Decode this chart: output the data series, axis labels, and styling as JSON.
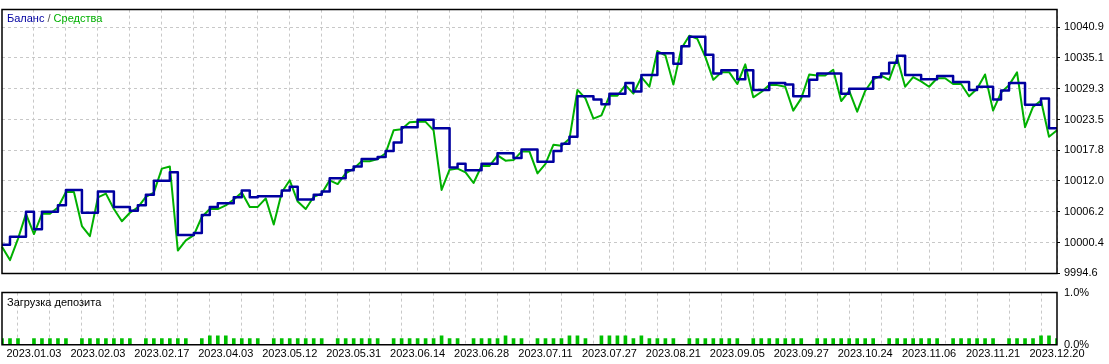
{
  "chart_data": [
    {
      "type": "line",
      "categories": [
        null,
        null,
        null,
        null,
        "2023.01.03",
        null,
        null,
        null,
        null,
        null,
        null,
        null,
        "2023.02.03",
        null,
        null,
        null,
        null,
        null,
        null,
        null,
        "2023.02.17",
        null,
        null,
        null,
        null,
        null,
        null,
        null,
        "2023.04.03",
        null,
        null,
        null,
        null,
        null,
        null,
        null,
        "2023.05.12",
        null,
        null,
        null,
        null,
        null,
        null,
        null,
        "2023.05.31",
        null,
        null,
        null,
        null,
        null,
        null,
        null,
        "2023.06.14",
        null,
        null,
        null,
        null,
        null,
        null,
        null,
        "2023.06.28",
        null,
        null,
        null,
        null,
        null,
        null,
        null,
        "2023.07.11",
        null,
        null,
        null,
        null,
        null,
        null,
        null,
        "2023.07.27",
        null,
        null,
        null,
        null,
        null,
        null,
        null,
        "2023.08.21",
        null,
        null,
        null,
        null,
        null,
        null,
        null,
        "2023.09.05",
        null,
        null,
        null,
        null,
        null,
        null,
        null,
        "2023.09.27",
        null,
        null,
        null,
        null,
        null,
        null,
        null,
        "2023.10.24",
        null,
        null,
        null,
        null,
        null,
        null,
        null,
        "2023.11.06",
        null,
        null,
        null,
        null,
        null,
        null,
        null,
        "2023.11.21",
        null,
        null,
        null,
        null,
        null,
        null,
        null,
        "2023.12.20"
      ],
      "series": [
        {
          "name": "Баланс",
          "type": "step",
          "color": "#0000a0",
          "values": [
            10000.0,
            10001.5,
            10001.5,
            10006.2,
            10002.9,
            10006.2,
            10006.2,
            10007.4,
            10010.3,
            10010.3,
            10006.0,
            10006.0,
            10010.0,
            10010.0,
            10007.1,
            10007.1,
            10006.4,
            10007.4,
            10009.4,
            10012.0,
            10012.0,
            10013.6,
            10001.8,
            10001.8,
            10002.2,
            10005.6,
            10007.1,
            10007.8,
            10007.8,
            10008.9,
            10010.2,
            10008.9,
            10009.1,
            10009.1,
            10009.1,
            10010.2,
            10010.9,
            10008.5,
            10008.5,
            10009.4,
            10010.0,
            10012.5,
            10012.5,
            10014.0,
            10014.7,
            10016.1,
            10016.1,
            10016.5,
            10017.6,
            10019.2,
            10022.1,
            10022.1,
            10023.5,
            10023.5,
            10021.9,
            10021.9,
            10014.5,
            10015.2,
            10014.0,
            10014.0,
            10015.2,
            10015.2,
            10017.2,
            10017.2,
            10016.3,
            10017.9,
            10017.9,
            10015.6,
            10015.6,
            10017.6,
            10019.0,
            10020.3,
            10027.9,
            10027.9,
            10027.3,
            10026.4,
            10028.4,
            10028.4,
            10030.4,
            10028.8,
            10031.9,
            10031.9,
            10036.0,
            10036.0,
            10034.0,
            10037.3,
            10039.1,
            10039.1,
            10035.7,
            10032.2,
            10032.8,
            10032.8,
            10031.1,
            10032.8,
            10029.1,
            10029.1,
            10030.4,
            10030.4,
            10030.1,
            10027.9,
            10027.9,
            10031.0,
            10032.2,
            10032.2,
            10032.2,
            10028.4,
            10029.3,
            10029.3,
            10029.3,
            10031.5,
            10032.2,
            10034.2,
            10035.5,
            10031.9,
            10031.9,
            10031.1,
            10031.1,
            10031.7,
            10031.7,
            10030.6,
            10030.6,
            10029.1,
            10029.7,
            10029.7,
            10027.3,
            10029.0,
            10030.4,
            10030.4,
            10026.3,
            10026.3,
            10027.5,
            10021.9,
            10021.9
          ]
        },
        {
          "name": "Средства",
          "type": "line",
          "color": "#00b000",
          "values": [
            9999.6,
            9997.1,
            10001.1,
            10005.8,
            10002.0,
            10005.8,
            10005.8,
            10007.0,
            10009.9,
            10009.9,
            10003.5,
            10001.6,
            10008.9,
            10009.6,
            10006.7,
            10004.4,
            10006.0,
            10007.0,
            10009.0,
            10009.8,
            10014.3,
            10014.7,
            9998.9,
            10000.8,
            10001.8,
            10005.2,
            10006.7,
            10006.7,
            10007.4,
            10008.5,
            10009.8,
            10007.1,
            10007.1,
            10008.7,
            10003.8,
            10009.8,
            10012.1,
            10008.1,
            10006.7,
            10009.0,
            10009.6,
            10012.1,
            10011.4,
            10013.4,
            10014.3,
            10015.7,
            10015.7,
            10016.1,
            10017.2,
            10021.5,
            10021.7,
            10023.0,
            10023.1,
            10023.1,
            10021.5,
            10010.3,
            10014.1,
            10014.3,
            10013.6,
            10011.6,
            10014.8,
            10014.8,
            10016.8,
            10015.8,
            10015.9,
            10017.5,
            10017.5,
            10013.4,
            10015.2,
            10018.8,
            10018.6,
            10019.9,
            10029.1,
            10027.5,
            10023.7,
            10024.3,
            10028.0,
            10028.0,
            10030.0,
            10028.4,
            10031.5,
            10029.7,
            10036.4,
            10035.6,
            10030.1,
            10036.9,
            10039.3,
            10038.7,
            10035.3,
            10031.0,
            10032.4,
            10032.4,
            10030.2,
            10033.9,
            10027.7,
            10028.7,
            10030.0,
            10030.0,
            10029.7,
            10025.2,
            10027.5,
            10032.0,
            10031.8,
            10031.8,
            10032.9,
            10027.0,
            10028.9,
            10025.0,
            10028.9,
            10031.1,
            10031.8,
            10031.0,
            10035.1,
            10029.7,
            10031.5,
            10030.7,
            10029.7,
            10031.3,
            10031.3,
            10030.2,
            10030.2,
            10027.9,
            10029.3,
            10032.0,
            10025.2,
            10028.6,
            10030.0,
            10032.4,
            10022.1,
            10025.9,
            10027.1,
            10020.3,
            10021.5
          ]
        }
      ],
      "ylim": [
        9994.6,
        10044.2
      ],
      "yticks": [
        9994.6,
        10000.4,
        10006.2,
        {
          "value": 10012,
          "label": "10012.0"
        },
        10017.8,
        10023.5,
        10029.3,
        10035.1,
        10040.9
      ],
      "grid": true,
      "legend": "top left",
      "legend_title": "/",
      "tick_labels": "y"
    },
    {
      "type": "bar",
      "title": "Загрузка депозита",
      "categories": [
        null,
        null,
        null,
        null,
        "2023.01.03",
        null,
        null,
        null,
        null,
        null,
        null,
        null,
        "2023.02.03",
        null,
        null,
        null,
        null,
        null,
        null,
        null,
        "2023.02.17",
        null,
        null,
        null,
        null,
        null,
        null,
        null,
        "2023.04.03",
        null,
        null,
        null,
        null,
        null,
        null,
        null,
        "2023.05.12",
        null,
        null,
        null,
        null,
        null,
        null,
        null,
        "2023.05.31",
        null,
        null,
        null,
        null,
        null,
        null,
        null,
        "2023.06.14",
        null,
        null,
        null,
        null,
        null,
        null,
        null,
        "2023.06.28",
        null,
        null,
        null,
        null,
        null,
        null,
        null,
        "2023.07.11",
        null,
        null,
        null,
        null,
        null,
        null,
        null,
        "2023.07.27",
        null,
        null,
        null,
        null,
        null,
        null,
        null,
        "2023.08.21",
        null,
        null,
        null,
        null,
        null,
        null,
        null,
        "2023.09.05",
        null,
        null,
        null,
        null,
        null,
        null,
        null,
        "2023.09.27",
        null,
        null,
        null,
        null,
        null,
        null,
        null,
        "2023.10.24",
        null,
        null,
        null,
        null,
        null,
        null,
        null,
        "2023.11.06",
        null,
        null,
        null,
        null,
        null,
        null,
        null,
        "2023.11.21",
        null,
        null,
        null,
        null,
        null,
        null,
        null,
        "2023.12.20"
      ],
      "color": "#00c000",
      "values": [
        0.12,
        0.12,
        0.12,
        null,
        0.12,
        0.12,
        0.12,
        0.12,
        0.12,
        null,
        0.12,
        0.12,
        0.12,
        0.12,
        0.12,
        0.12,
        0.12,
        null,
        0.12,
        0.12,
        0.12,
        0.12,
        0.12,
        0.12,
        null,
        0.12,
        0.17,
        0.17,
        0.17,
        0.12,
        0.12,
        0.12,
        0.12,
        null,
        0.12,
        0.12,
        0.12,
        0.12,
        0.12,
        0.12,
        0.12,
        null,
        0.12,
        0.12,
        0.12,
        0.12,
        0.12,
        0.12,
        null,
        0.12,
        0.12,
        0.12,
        0.12,
        0.12,
        0.12,
        0.17,
        0.12,
        0.12,
        null,
        0.12,
        0.12,
        0.12,
        0.12,
        0.17,
        0.12,
        0.12,
        null,
        0.12,
        0.12,
        0.12,
        0.12,
        0.17,
        0.17,
        0.12,
        null,
        0.17,
        0.17,
        0.17,
        0.17,
        0.12,
        0.17,
        0.12,
        0.12,
        0.12,
        0.12,
        null,
        0.12,
        0.12,
        0.12,
        0.12,
        0.12,
        0.12,
        0.12,
        null,
        0.12,
        0.12,
        0.12,
        0.12,
        0.12,
        0.12,
        0.12,
        null,
        0.12,
        0.12,
        0.12,
        0.12,
        0.12,
        0.12,
        0.12,
        0.12,
        null,
        0.12,
        0.12,
        0.12,
        0.12,
        0.12,
        0.12,
        0.12,
        null,
        0.12,
        0.12,
        0.12,
        0.12,
        0.12,
        0.12,
        null,
        0.12,
        0.12,
        0.12,
        0.12,
        0.17,
        0.17,
        0.12
      ],
      "ylim": [
        0,
        1
      ],
      "yticks": [
        {
          "value": 0,
          "label": "0.0%"
        },
        {
          "value": 1,
          "label": "1.0%"
        }
      ],
      "grid": "x"
    }
  ]
}
